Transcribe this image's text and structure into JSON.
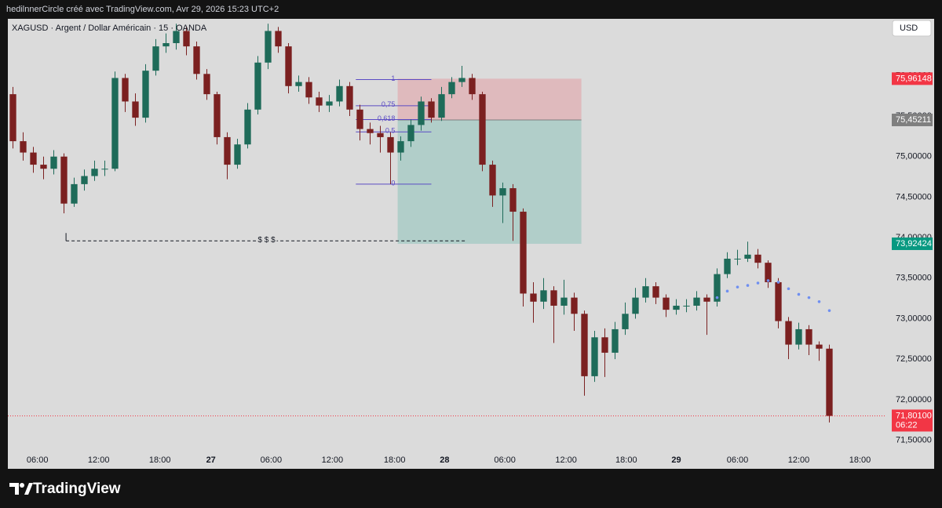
{
  "header": {
    "text": "hedilnnerCircle créé avec TradingView.com, Avr 29, 2026 15:23 UTC+2"
  },
  "footer": {
    "brand": "TradingView"
  },
  "chart_data": {
    "type": "candlestick",
    "title": "XAGUSD · Argent / Dollar Américain · 15 · OANDA",
    "currency": "USD",
    "up_color": "#1e6b59",
    "down_color": "#7b2020",
    "grid": false,
    "x": [
      0,
      1,
      2,
      3,
      4,
      5,
      6,
      7,
      8,
      9,
      10,
      11,
      12,
      13,
      14,
      15,
      16,
      17,
      18,
      19,
      20,
      21,
      22,
      23,
      24,
      25,
      26,
      27,
      28,
      29,
      30,
      31,
      32,
      33,
      34,
      35,
      36,
      37,
      38,
      39,
      40,
      41,
      42,
      43,
      44,
      45,
      46,
      47,
      48,
      49,
      50,
      51,
      52,
      53,
      54,
      55,
      56,
      57,
      58,
      59,
      60,
      61,
      62,
      63,
      64,
      65,
      66,
      67,
      68,
      69,
      70,
      71,
      72,
      73,
      74,
      75,
      76,
      77,
      78,
      79,
      80
    ],
    "open": [
      75.77,
      75.19,
      75.05,
      74.9,
      74.85,
      75.0,
      74.42,
      74.66,
      74.76,
      74.85,
      74.85,
      75.97,
      75.68,
      75.48,
      76.06,
      76.36,
      76.4,
      76.55,
      76.36,
      76.02,
      75.77,
      75.24,
      74.9,
      75.15,
      75.58,
      76.16,
      76.55,
      76.36,
      75.87,
      75.92,
      75.73,
      75.63,
      75.68,
      75.87,
      75.58,
      75.34,
      75.29,
      75.24,
      75.05,
      75.19,
      75.39,
      75.68,
      75.48,
      75.77,
      75.92,
      75.97,
      75.77,
      74.9,
      74.52,
      74.61,
      74.32,
      73.31,
      73.21,
      73.35,
      73.16,
      73.26,
      73.06,
      72.29,
      72.77,
      72.58,
      72.87,
      73.06,
      73.26,
      73.4,
      73.26,
      73.11,
      73.16,
      73.16,
      73.26,
      73.21,
      73.55,
      73.74,
      73.74,
      73.79,
      73.69,
      73.45,
      72.97,
      72.68,
      72.87,
      72.68,
      72.63
    ],
    "high": [
      75.86,
      75.3,
      75.12,
      75.0,
      75.08,
      75.04,
      74.74,
      74.84,
      74.95,
      74.95,
      76.05,
      76.02,
      75.78,
      76.14,
      76.45,
      76.52,
      76.64,
      76.6,
      76.42,
      76.08,
      75.8,
      75.3,
      75.22,
      75.66,
      76.24,
      76.64,
      76.6,
      76.4,
      76.0,
      75.98,
      75.8,
      75.76,
      75.95,
      75.92,
      75.64,
      75.42,
      75.38,
      75.3,
      75.25,
      75.46,
      75.74,
      75.72,
      75.86,
      75.98,
      76.12,
      76.02,
      75.8,
      74.95,
      74.68,
      74.66,
      74.36,
      73.45,
      73.5,
      73.4,
      73.48,
      73.32,
      73.1,
      72.85,
      72.88,
      72.96,
      73.2,
      73.38,
      73.5,
      73.45,
      73.3,
      73.24,
      73.24,
      73.34,
      73.3,
      73.62,
      73.82,
      73.85,
      73.95,
      73.86,
      73.72,
      73.5,
      73.02,
      72.95,
      72.92,
      72.72,
      72.68
    ],
    "low": [
      75.1,
      74.95,
      74.8,
      74.72,
      74.78,
      74.3,
      74.38,
      74.58,
      74.7,
      74.76,
      74.82,
      75.55,
      75.38,
      75.42,
      76.0,
      76.28,
      76.32,
      76.25,
      75.95,
      75.7,
      75.15,
      74.72,
      74.85,
      75.1,
      75.52,
      76.08,
      76.28,
      75.78,
      75.8,
      75.65,
      75.55,
      75.55,
      75.62,
      75.5,
      75.2,
      75.15,
      75.05,
      74.66,
      74.95,
      75.12,
      75.32,
      75.42,
      75.44,
      75.72,
      75.86,
      75.7,
      74.82,
      74.38,
      74.18,
      73.96,
      73.15,
      72.95,
      73.12,
      72.7,
      73.05,
      72.85,
      72.05,
      72.22,
      72.28,
      72.5,
      72.8,
      73.0,
      73.2,
      73.18,
      73.02,
      73.05,
      73.08,
      73.1,
      72.8,
      73.15,
      73.5,
      73.66,
      73.7,
      73.62,
      73.38,
      72.88,
      72.5,
      72.62,
      72.55,
      72.48,
      71.72
    ],
    "close": [
      75.19,
      75.05,
      74.9,
      74.85,
      75.0,
      74.42,
      74.66,
      74.76,
      74.85,
      74.85,
      75.97,
      75.68,
      75.48,
      76.06,
      76.36,
      76.4,
      76.55,
      76.36,
      76.02,
      75.77,
      75.24,
      74.9,
      75.15,
      75.58,
      76.16,
      76.55,
      76.36,
      75.87,
      75.92,
      75.73,
      75.63,
      75.68,
      75.87,
      75.58,
      75.34,
      75.29,
      75.24,
      75.05,
      75.19,
      75.39,
      75.68,
      75.48,
      75.77,
      75.92,
      75.97,
      75.77,
      74.9,
      74.52,
      74.61,
      74.32,
      73.31,
      73.21,
      73.35,
      73.16,
      73.26,
      73.06,
      72.29,
      72.77,
      72.58,
      72.87,
      73.06,
      73.26,
      73.4,
      73.26,
      73.11,
      73.16,
      73.16,
      73.26,
      73.21,
      73.55,
      73.74,
      73.74,
      73.79,
      73.69,
      73.45,
      72.97,
      72.68,
      72.87,
      72.68,
      72.63,
      71.8
    ],
    "xlim": [
      -0.5,
      85.5
    ],
    "xticks": [
      {
        "value": 2.4,
        "label": "06:00"
      },
      {
        "value": 8.4,
        "label": "12:00"
      },
      {
        "value": 14.4,
        "label": "18:00"
      },
      {
        "value": 19.4,
        "label": "27"
      },
      {
        "value": 25.3,
        "label": "06:00"
      },
      {
        "value": 31.3,
        "label": "12:00"
      },
      {
        "value": 37.4,
        "label": "18:00"
      },
      {
        "value": 42.3,
        "label": "28"
      },
      {
        "value": 48.2,
        "label": "06:00"
      },
      {
        "value": 54.2,
        "label": "12:00"
      },
      {
        "value": 60.1,
        "label": "18:00"
      },
      {
        "value": 65.0,
        "label": "29"
      },
      {
        "value": 71.0,
        "label": "06:00"
      },
      {
        "value": 77.0,
        "label": "12:00"
      },
      {
        "value": 83.0,
        "label": "18:00"
      }
    ],
    "ylim": [
      71.37,
      76.7
    ],
    "yticks": [
      {
        "value": 71.5,
        "label": "71,50000"
      },
      {
        "value": 72,
        "label": "72,00000"
      },
      {
        "value": 72.5,
        "label": "72,50000"
      },
      {
        "value": 73,
        "label": "73,00000"
      },
      {
        "value": 73.5,
        "label": "73,50000"
      },
      {
        "value": 74,
        "label": "74,00000"
      },
      {
        "value": 74.5,
        "label": "74,50000"
      },
      {
        "value": 75,
        "label": "75,00000"
      },
      {
        "value": 75.5,
        "label": "75,50000"
      },
      {
        "value": 76,
        "label": "76,00000"
      }
    ],
    "position": {
      "x_start": 37.7,
      "x_end": 55.7,
      "stop": {
        "value": 75.96148,
        "label": "75,96148",
        "color": "#f23645"
      },
      "entry": {
        "value": 75.45211,
        "label": "75,45211",
        "color": "#7f7f7f"
      },
      "target": {
        "value": 73.92424,
        "label": "73,92424",
        "color": "#089981"
      }
    },
    "fib": {
      "high": 75.95,
      "low": 74.66,
      "x_start": 33.6,
      "x_end": 41.0,
      "color": "#5b4bc4",
      "levels": [
        1,
        {
          "value": 0.75,
          "label": "0,75"
        },
        {
          "value": 0.618,
          "label": "0,618"
        },
        {
          "value": 0.5,
          "label": "0,5"
        },
        0
      ]
    },
    "liquidity": {
      "value": 73.96,
      "label": "$ $ $",
      "x_start": 5.2,
      "x_end": 44.5
    },
    "ma": {
      "color": "#6f8ff0",
      "x": [
        69,
        70,
        71,
        72,
        73,
        74,
        75,
        76,
        77,
        78,
        79,
        80
      ],
      "values": [
        73.26,
        73.34,
        73.39,
        73.41,
        73.44,
        73.47,
        73.45,
        73.37,
        73.3,
        73.26,
        73.21,
        73.1
      ]
    },
    "last_price": {
      "value": 71.801,
      "label": "71,80100",
      "countdown": "06:22",
      "color": "#f23645"
    }
  }
}
